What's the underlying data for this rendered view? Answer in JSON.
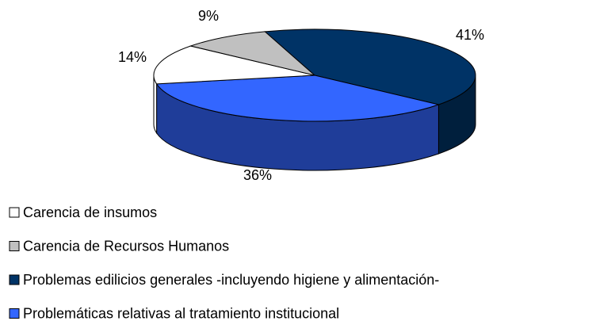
{
  "chart_data": {
    "type": "pie",
    "categories": [
      "Carencia de insumos",
      "Carencia de Recursos Humanos",
      "Problemas edilicios generales -incluyendo higiene y alimentación-",
      "Problemáticas relativas al tratamiento institucional"
    ],
    "values": [
      14,
      9,
      41,
      36
    ],
    "value_labels": [
      "14%",
      "9%",
      "41%",
      "36%"
    ],
    "colors": [
      "#ffffff",
      "#c0c0c0",
      "#003366",
      "#3366ff"
    ]
  }
}
